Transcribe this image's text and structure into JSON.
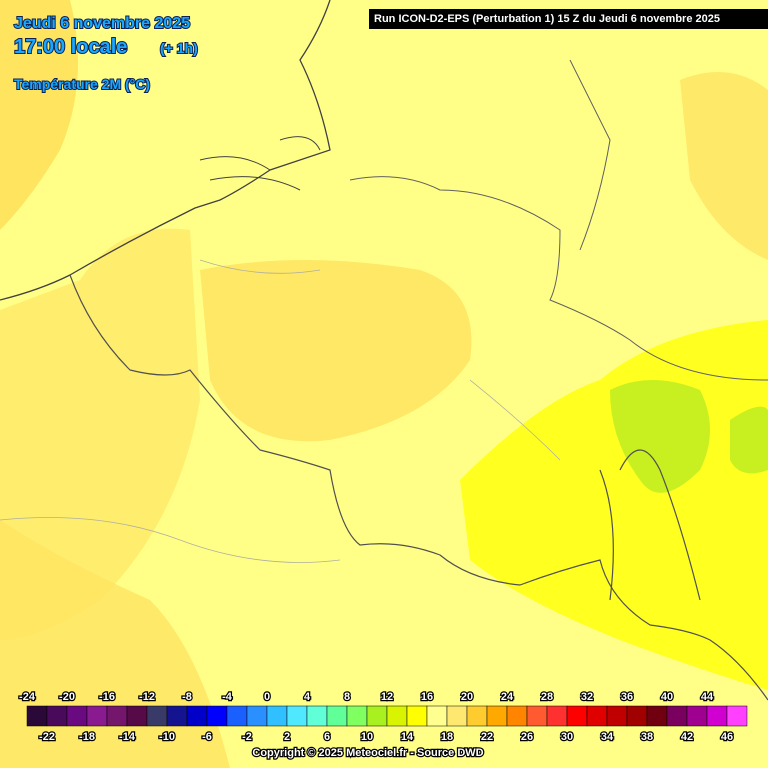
{
  "header": {
    "date": "Jeudi 6 novembre 2025",
    "time": "17:00 locale",
    "offset": "(+ 1h)",
    "parameter": "Température 2M (°C)"
  },
  "run": "Run ICON-D2-EPS (Perturbation 1) 15 Z du Jeudi 6 novembre 2025",
  "colorbar": {
    "scale": [
      -24,
      -22,
      -20,
      -18,
      -16,
      -14,
      -12,
      -10,
      -8,
      -6,
      -4,
      -2,
      0,
      2,
      4,
      6,
      8,
      10,
      12,
      14,
      16,
      18,
      20,
      22,
      24,
      26,
      28,
      30,
      32,
      34,
      36,
      38,
      40,
      42,
      44,
      46
    ],
    "colors": [
      "#2a0838",
      "#4a0a5c",
      "#6a0a80",
      "#8a1a90",
      "#74166c",
      "#560a48",
      "#3a3a68",
      "#141490",
      "#0000c8",
      "#0000ff",
      "#1a60ff",
      "#2a90ff",
      "#30c0ff",
      "#50e8ff",
      "#60ffd8",
      "#60ff98",
      "#80ff60",
      "#a8f020",
      "#d8f400",
      "#ffff00",
      "#ffff90",
      "#ffe870",
      "#ffcc30",
      "#ffa800",
      "#ff8400",
      "#ff5a30",
      "#ff3030",
      "#ff0000",
      "#e00000",
      "#c00000",
      "#a00000",
      "#700010",
      "#7a0060",
      "#a00090",
      "#d000d0",
      "#ff40ff"
    ]
  },
  "copyright": "Copyright © 2025 Meteociel.fr - Source DWD"
}
